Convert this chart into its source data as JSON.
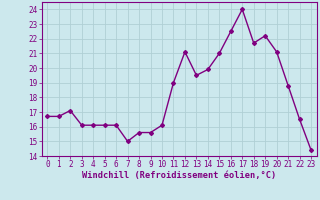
{
  "x": [
    0,
    1,
    2,
    3,
    4,
    5,
    6,
    7,
    8,
    9,
    10,
    11,
    12,
    13,
    14,
    15,
    16,
    17,
    18,
    19,
    20,
    21,
    22,
    23
  ],
  "y": [
    16.7,
    16.7,
    17.1,
    16.1,
    16.1,
    16.1,
    16.1,
    15.0,
    15.6,
    15.6,
    16.1,
    19.0,
    21.1,
    19.5,
    19.9,
    21.0,
    22.5,
    24.0,
    21.7,
    22.2,
    21.1,
    18.8,
    16.5,
    14.4
  ],
  "line_color": "#800080",
  "marker": "D",
  "marker_size": 2.0,
  "bg_color": "#cce8ed",
  "grid_color": "#b0cfd5",
  "xlabel": "Windchill (Refroidissement éolien,°C)",
  "ylim": [
    14,
    24.5
  ],
  "yticks": [
    14,
    15,
    16,
    17,
    18,
    19,
    20,
    21,
    22,
    23,
    24
  ],
  "xlim": [
    -0.5,
    23.5
  ],
  "xticks": [
    0,
    1,
    2,
    3,
    4,
    5,
    6,
    7,
    8,
    9,
    10,
    11,
    12,
    13,
    14,
    15,
    16,
    17,
    18,
    19,
    20,
    21,
    22,
    23
  ],
  "tick_color": "#800080",
  "label_color": "#800080",
  "tick_fontsize": 5.5,
  "xlabel_fontsize": 6.2,
  "linewidth": 1.0
}
